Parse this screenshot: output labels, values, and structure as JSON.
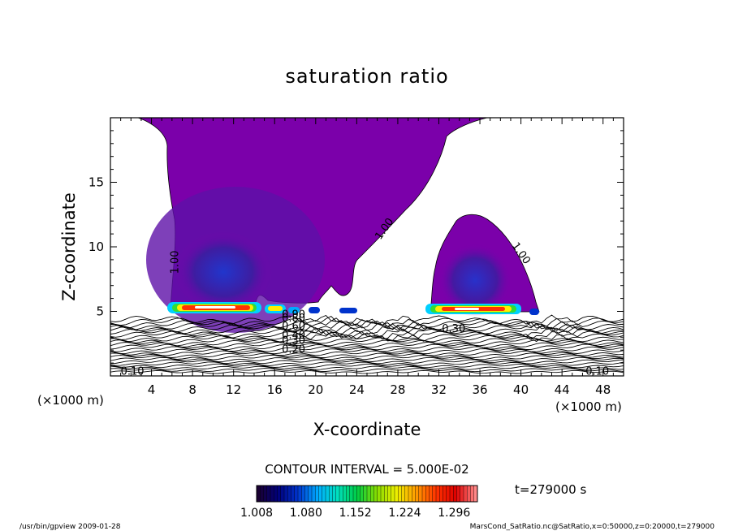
{
  "chart_data": {
    "type": "heatmap",
    "title": "saturation ratio",
    "xlabel": "X-coordinate",
    "ylabel": "Z-coordinate",
    "x_unit": "(×1000 m)",
    "y_unit": "(×1000 m)",
    "xlim": [
      0,
      50
    ],
    "ylim": [
      0,
      20
    ],
    "x_ticks": [
      4,
      8,
      12,
      16,
      20,
      24,
      28,
      32,
      36,
      40,
      44,
      48
    ],
    "y_ticks": [
      5,
      10,
      15
    ],
    "contour_interval_text": "CONTOUR INTERVAL = 5.000E-02",
    "time_text": "t=279000 s",
    "colorbar": {
      "range": [
        1.008,
        1.33
      ],
      "ticks": [
        "1.008",
        "1.080",
        "1.152",
        "1.224",
        "1.296"
      ],
      "colors": [
        "#1a0033",
        "#00007a",
        "#0033cc",
        "#00aaff",
        "#00e0c0",
        "#00cc44",
        "#88dd00",
        "#eeee00",
        "#ff9900",
        "#ff3300",
        "#dd0000",
        "#ff8888"
      ]
    },
    "contour_labels": [
      {
        "text": "1.00",
        "x": 6.6,
        "z": 7.9,
        "angle": -90
      },
      {
        "text": "1.00",
        "x": 26.3,
        "z": 10.5,
        "angle": -55
      },
      {
        "text": "1.00",
        "x": 39.1,
        "z": 10.1,
        "angle": 55
      },
      {
        "text": "0.90",
        "x": 16.7,
        "z": 4.5,
        "angle": 0
      },
      {
        "text": "0.80",
        "x": 16.7,
        "z": 4.2,
        "angle": 0
      },
      {
        "text": "0.60",
        "x": 16.7,
        "z": 3.6,
        "angle": 0
      },
      {
        "text": "0.40",
        "x": 16.7,
        "z": 2.9,
        "angle": 0
      },
      {
        "text": "0.30",
        "x": 16.7,
        "z": 2.5,
        "angle": 0
      },
      {
        "text": "0.20",
        "x": 16.7,
        "z": 1.8,
        "angle": 0
      },
      {
        "text": "0.30",
        "x": 32.3,
        "z": 3.4,
        "angle": 0
      },
      {
        "text": "0.10",
        "x": 1.0,
        "z": 0.1,
        "angle": 0
      },
      {
        "text": "0.10",
        "x": 46.3,
        "z": 0.1,
        "angle": 0
      }
    ],
    "cloud_color": "#7b00aa",
    "cloud_core_color": "#3a1ea0"
  },
  "footer": {
    "left": "/usr/bin/gpview   2009-01-28",
    "right": "MarsCond_SatRatio.nc@SatRatio,x=0:50000,z=0:20000,t=279000"
  }
}
